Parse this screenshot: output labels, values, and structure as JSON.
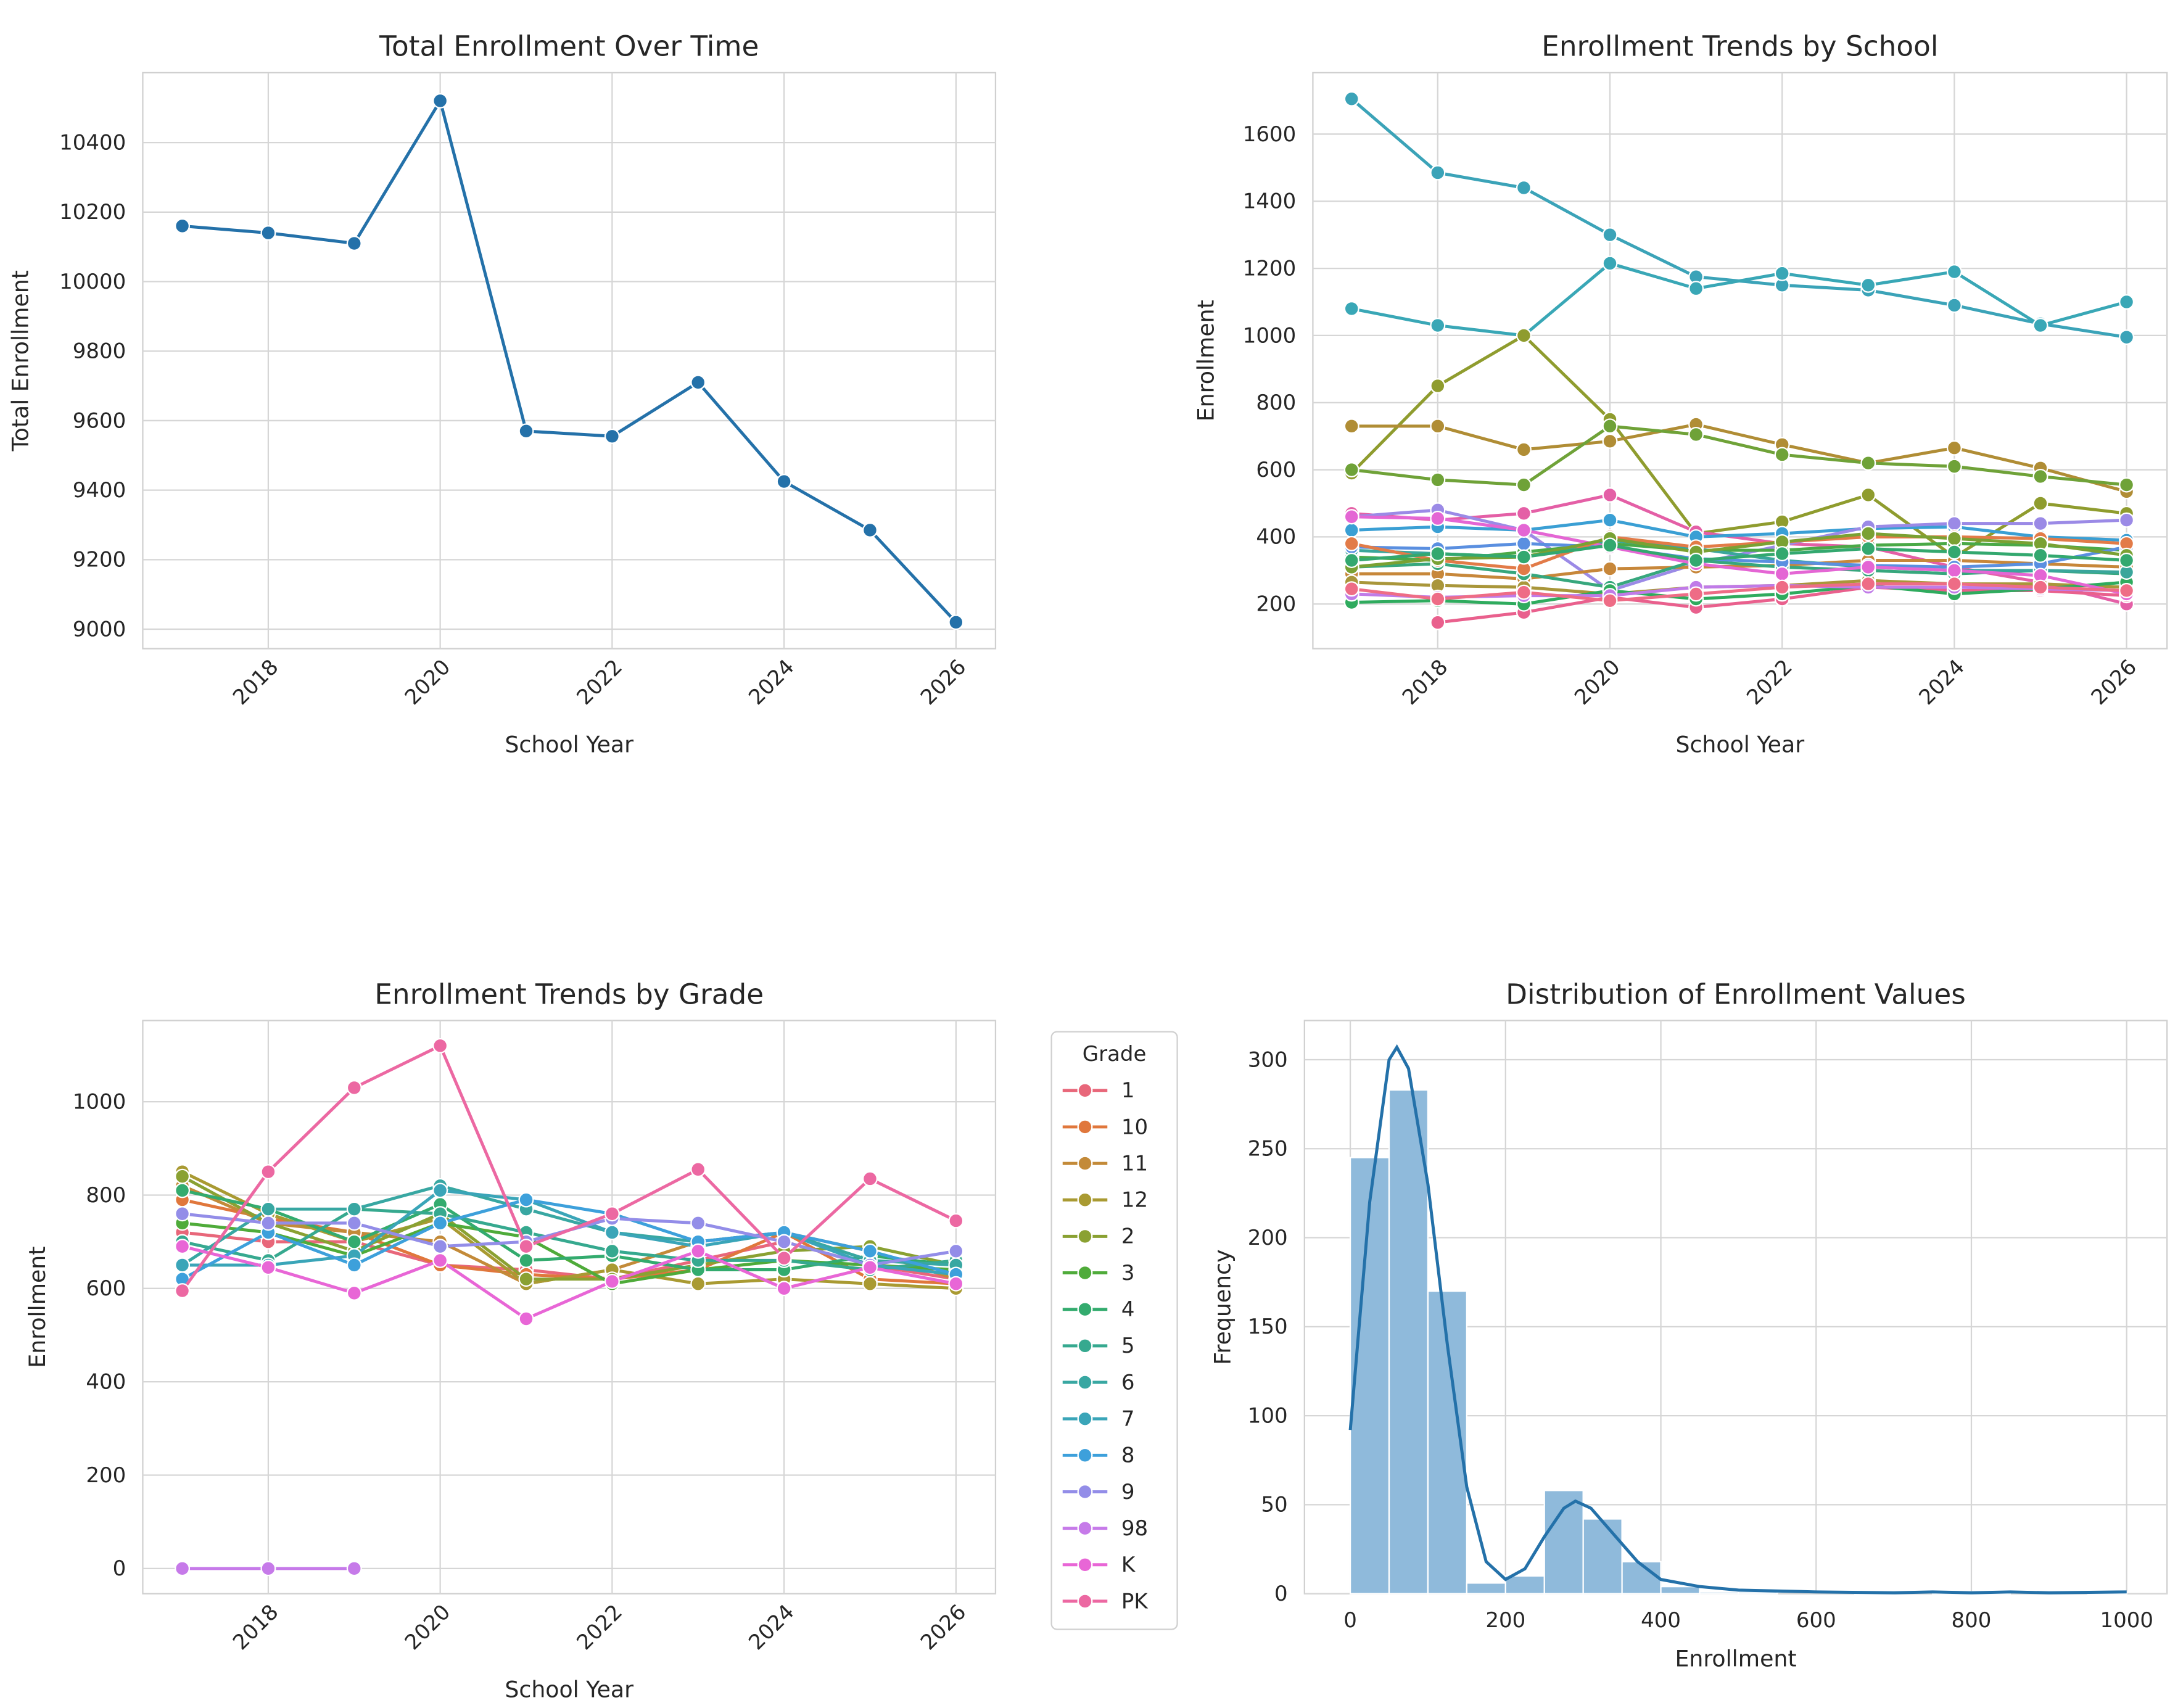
{
  "chart_data": [
    {
      "type": "line",
      "title": "Total Enrollment Over Time",
      "x_label": "School Year",
      "y_label": "Total Enrollment",
      "x": [
        2017,
        2018,
        2019,
        2020,
        2021,
        2022,
        2023,
        2024,
        2025,
        2026
      ],
      "values": [
        10160,
        10140,
        10110,
        10520,
        9570,
        9555,
        9710,
        9425,
        9285,
        9020
      ],
      "color": "#2471a9",
      "xlim": [
        2016.54,
        2026.46
      ],
      "ylim": [
        8944,
        10601
      ],
      "xticks": [
        2018,
        2020,
        2022,
        2024,
        2026
      ],
      "yticks": [
        9000,
        9200,
        9400,
        9600,
        9800,
        10000,
        10200,
        10400
      ],
      "grid": true
    },
    {
      "type": "line",
      "title": "Enrollment Trends by School",
      "x_label": "School Year",
      "y_label": "Enrollment",
      "x": [
        2017,
        2018,
        2019,
        2020,
        2021,
        2022,
        2023,
        2024,
        2025,
        2026
      ],
      "series": [
        {
          "color": "#3ba3b8",
          "values": [
            1705,
            1485,
            1440,
            1300,
            1175,
            1150,
            1135,
            1090,
            1035,
            995
          ]
        },
        {
          "color": "#39a7b6",
          "values": [
            1080,
            1030,
            1000,
            1215,
            1140,
            1185,
            1150,
            1190,
            1030,
            1100
          ]
        },
        {
          "color": "#8f9c2e",
          "values": [
            590,
            850,
            1000,
            750,
            410,
            445,
            525,
            340,
            500,
            470
          ]
        },
        {
          "color": "#b08d35",
          "values": [
            730,
            730,
            660,
            685,
            735,
            675,
            620,
            665,
            605,
            535
          ]
        },
        {
          "color": "#6fa238",
          "values": [
            600,
            570,
            555,
            730,
            705,
            645,
            620,
            610,
            580,
            555
          ]
        },
        {
          "color": "#e45fa6",
          "values": [
            470,
            450,
            470,
            525,
            415,
            380,
            370,
            310,
            265,
            200
          ]
        },
        {
          "color": "#e9608d",
          "values": [
            null,
            145,
            175,
            220,
            190,
            215,
            250,
            240,
            240,
            225
          ]
        },
        {
          "color": "#3a9fd4",
          "values": [
            420,
            430,
            420,
            450,
            400,
            410,
            425,
            430,
            400,
            390
          ]
        },
        {
          "color": "#9b8ae6",
          "values": [
            460,
            480,
            420,
            240,
            320,
            375,
            430,
            440,
            440,
            450
          ]
        },
        {
          "color": "#c7873a",
          "values": [
            290,
            290,
            275,
            305,
            310,
            315,
            330,
            330,
            320,
            310
          ]
        },
        {
          "color": "#a9963a",
          "values": [
            265,
            255,
            250,
            230,
            250,
            255,
            270,
            260,
            260,
            250
          ]
        },
        {
          "color": "#4aa947",
          "values": [
            340,
            330,
            355,
            380,
            360,
            360,
            375,
            380,
            375,
            360
          ]
        },
        {
          "color": "#37a77d",
          "values": [
            310,
            320,
            290,
            250,
            330,
            310,
            300,
            290,
            300,
            290
          ]
        },
        {
          "color": "#2fab5e",
          "values": [
            205,
            210,
            200,
            240,
            215,
            230,
            255,
            230,
            245,
            265
          ]
        },
        {
          "color": "#3aa69b",
          "values": [
            360,
            350,
            340,
            390,
            365,
            330,
            310,
            300,
            300,
            295
          ]
        },
        {
          "color": "#5a8fe0",
          "values": [
            370,
            365,
            380,
            370,
            335,
            325,
            315,
            310,
            320,
            370
          ]
        },
        {
          "color": "#c07be8",
          "values": [
            230,
            220,
            225,
            225,
            250,
            255,
            250,
            250,
            245,
            240
          ]
        },
        {
          "color": "#e466d4",
          "values": [
            460,
            455,
            420,
            370,
            320,
            290,
            310,
            300,
            285,
            230
          ]
        },
        {
          "color": "#ee6c86",
          "values": [
            245,
            215,
            235,
            210,
            230,
            250,
            260,
            260,
            250,
            240
          ]
        },
        {
          "color": "#e27b48",
          "values": [
            380,
            330,
            305,
            400,
            370,
            385,
            400,
            400,
            395,
            380
          ]
        },
        {
          "color": "#7aa133",
          "values": [
            310,
            335,
            340,
            395,
            355,
            385,
            410,
            395,
            380,
            345
          ]
        },
        {
          "color": "#33a86f",
          "values": [
            330,
            350,
            340,
            375,
            330,
            350,
            365,
            355,
            345,
            330
          ]
        }
      ],
      "xlim": [
        2016.55,
        2026.47
      ],
      "ylim": [
        67,
        1783
      ],
      "xticks": [
        2018,
        2020,
        2022,
        2024,
        2026
      ],
      "yticks": [
        200,
        400,
        600,
        800,
        1000,
        1200,
        1400,
        1600
      ],
      "grid": true
    },
    {
      "type": "line",
      "title": "Enrollment Trends by Grade",
      "x_label": "School Year",
      "y_label": "Enrollment",
      "legend_title": "Grade",
      "legend": "outside right",
      "x": [
        2017,
        2018,
        2019,
        2020,
        2021,
        2022,
        2023,
        2024,
        2025,
        2026
      ],
      "series": [
        {
          "name": "1",
          "color": "#e8677a",
          "values": [
            720,
            700,
            700,
            650,
            640,
            620,
            660,
            700,
            650,
            620
          ]
        },
        {
          "name": "10",
          "color": "#e0773c",
          "values": [
            790,
            750,
            720,
            650,
            630,
            620,
            640,
            720,
            620,
            610
          ]
        },
        {
          "name": "11",
          "color": "#c38a39",
          "values": [
            820,
            740,
            720,
            700,
            610,
            640,
            700,
            720,
            680,
            620
          ]
        },
        {
          "name": "12",
          "color": "#a99a32",
          "values": [
            850,
            760,
            700,
            750,
            610,
            640,
            610,
            620,
            610,
            600
          ]
        },
        {
          "name": "2",
          "color": "#8aa132",
          "values": [
            840,
            740,
            680,
            760,
            620,
            620,
            650,
            680,
            690,
            650
          ]
        },
        {
          "name": "3",
          "color": "#4fab3a",
          "values": [
            740,
            720,
            670,
            740,
            710,
            610,
            640,
            660,
            650,
            640
          ]
        },
        {
          "name": "4",
          "color": "#33ab6e",
          "values": [
            810,
            770,
            700,
            780,
            660,
            670,
            640,
            640,
            670,
            650
          ]
        },
        {
          "name": "5",
          "color": "#36a98f",
          "values": [
            700,
            660,
            770,
            760,
            720,
            680,
            660,
            660,
            640,
            660
          ]
        },
        {
          "name": "6",
          "color": "#38a7a2",
          "values": [
            650,
            770,
            770,
            820,
            770,
            720,
            700,
            720,
            660,
            650
          ]
        },
        {
          "name": "7",
          "color": "#3aa5b8",
          "values": [
            650,
            650,
            670,
            810,
            790,
            720,
            690,
            720,
            650,
            630
          ]
        },
        {
          "name": "8",
          "color": "#3da0db",
          "values": [
            620,
            720,
            650,
            740,
            790,
            760,
            700,
            720,
            680,
            630
          ]
        },
        {
          "name": "9",
          "color": "#938de8",
          "values": [
            760,
            740,
            740,
            690,
            700,
            750,
            740,
            700,
            650,
            680
          ]
        },
        {
          "name": "98",
          "color": "#c67ae9",
          "values": [
            0,
            0,
            0,
            null,
            null,
            null,
            null,
            null,
            null,
            null
          ]
        },
        {
          "name": "K",
          "color": "#e866d6",
          "values": [
            690,
            645,
            590,
            660,
            535,
            615,
            680,
            600,
            645,
            610
          ]
        },
        {
          "name": "PK",
          "color": "#ec68a2",
          "values": [
            595,
            850,
            1030,
            1120,
            690,
            760,
            855,
            665,
            835,
            745
          ]
        }
      ],
      "xlim": [
        2016.54,
        2026.46
      ],
      "ylim": [
        -54,
        1174
      ],
      "xticks": [
        2018,
        2020,
        2022,
        2024,
        2026
      ],
      "yticks": [
        0,
        200,
        400,
        600,
        800,
        1000
      ],
      "grid": true
    },
    {
      "type": "histogram",
      "title": "Distribution of Enrollment Values",
      "x_label": "Enrollment",
      "y_label": "Frequency",
      "bins": [
        0,
        50,
        100,
        150,
        200,
        250,
        300,
        350,
        400,
        450,
        500,
        550,
        600,
        650,
        700,
        750,
        800,
        850,
        900,
        950,
        1000
      ],
      "values": [
        245,
        283,
        170,
        6,
        10,
        58,
        42,
        18,
        4,
        1,
        1,
        0,
        0,
        1,
        0,
        1,
        1,
        0,
        0,
        1
      ],
      "color": "#8fbadb",
      "kde": {
        "color": "#2471a9",
        "x": [
          0,
          25,
          50,
          60,
          75,
          100,
          125,
          150,
          175,
          200,
          225,
          250,
          275,
          290,
          310,
          340,
          370,
          400,
          450,
          500,
          600,
          700,
          750,
          800,
          850,
          900,
          1000
        ],
        "values": [
          92,
          220,
          300,
          307,
          295,
          230,
          140,
          60,
          18,
          8,
          14,
          32,
          48,
          52,
          48,
          33,
          18,
          8,
          4,
          2,
          1,
          0.5,
          1,
          0.5,
          1,
          0.5,
          1
        ]
      },
      "xlim": [
        -59,
        1052
      ],
      "ylim": [
        0,
        322
      ],
      "xticks": [
        0,
        200,
        400,
        600,
        800,
        1000
      ],
      "yticks": [
        0,
        50,
        100,
        150,
        200,
        250,
        300
      ],
      "grid": true
    }
  ]
}
